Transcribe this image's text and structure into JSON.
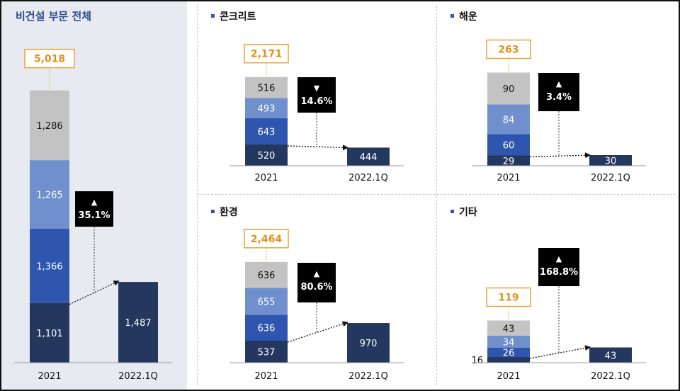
{
  "colors": {
    "seg1": "#24385f",
    "seg2": "#2f56ae",
    "seg3": "#6f8fcd",
    "seg4": "#c3c3c3",
    "result_bar": "#24385f",
    "total_border": "#e8a33a",
    "total_text": "#e09220",
    "title_main": "#2f4a8a",
    "badge_bg": "#000000"
  },
  "chart_data": [
    {
      "type": "bar",
      "title": "비건설 부문 전체",
      "categories": [
        "2021",
        "2022.1Q"
      ],
      "stack_2021": [
        1101,
        1366,
        1265,
        1286
      ],
      "value_2022": 1487,
      "total": "5,018",
      "change_arrow": "▲",
      "change_label": "35.1%"
    },
    {
      "type": "bar",
      "title": "콘크리트",
      "categories": [
        "2021",
        "2022.1Q"
      ],
      "stack_2021": [
        520,
        643,
        493,
        516
      ],
      "value_2022": 444,
      "total": "2,171",
      "change_arrow": "▼",
      "change_label": "14.6%"
    },
    {
      "type": "bar",
      "title": "해운",
      "categories": [
        "2021",
        "2022.1Q"
      ],
      "stack_2021": [
        29,
        60,
        84,
        90
      ],
      "value_2022": 30,
      "total": "263",
      "change_arrow": "▲",
      "change_label": "3.4%"
    },
    {
      "type": "bar",
      "title": "환경",
      "categories": [
        "2021",
        "2022.1Q"
      ],
      "stack_2021": [
        537,
        636,
        655,
        636
      ],
      "value_2022": 970,
      "total": "2,464",
      "change_arrow": "▲",
      "change_label": "80.6%"
    },
    {
      "type": "bar",
      "title": "기타",
      "categories": [
        "2021",
        "2022.1Q"
      ],
      "stack_2021": [
        16,
        26,
        34,
        43
      ],
      "value_2022": 43,
      "total": "119",
      "change_arrow": "▲",
      "change_label": "168.8%"
    }
  ]
}
